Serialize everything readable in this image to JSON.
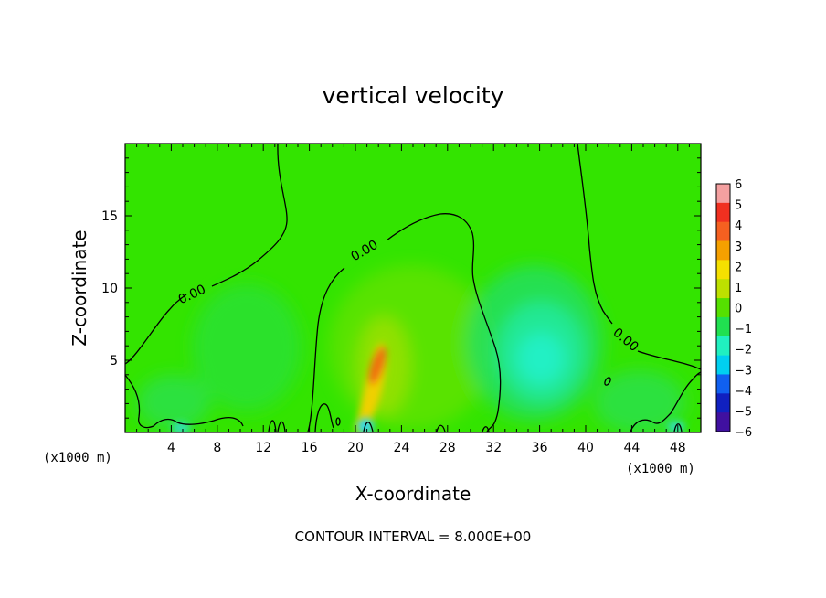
{
  "chart_data": {
    "type": "heatmap",
    "title": "vertical velocity",
    "xlabel": "X-coordinate",
    "ylabel": "Z-coordinate",
    "x_unit_label": "(x1000 m)",
    "xlim": [
      0,
      50
    ],
    "ylim": [
      0,
      20
    ],
    "x_ticks": [
      4,
      8,
      12,
      16,
      20,
      24,
      28,
      32,
      36,
      40,
      44,
      48
    ],
    "y_ticks": [
      5,
      10,
      15
    ],
    "colorbar": {
      "ticks": [
        6,
        5,
        4,
        3,
        2,
        1,
        0,
        -1,
        -2,
        -3,
        -4,
        -5,
        -6
      ],
      "colors": [
        "#f4a0a0",
        "#f03020",
        "#f56020",
        "#f5a000",
        "#f5e000",
        "#bde000",
        "#55e000",
        "#20e050",
        "#20f0c0",
        "#00d0f0",
        "#1060f0",
        "#1020c0",
        "#4010a0"
      ]
    },
    "contour_label": "0.00",
    "contour_note": "CONTOUR INTERVAL = 8.000E+00"
  }
}
